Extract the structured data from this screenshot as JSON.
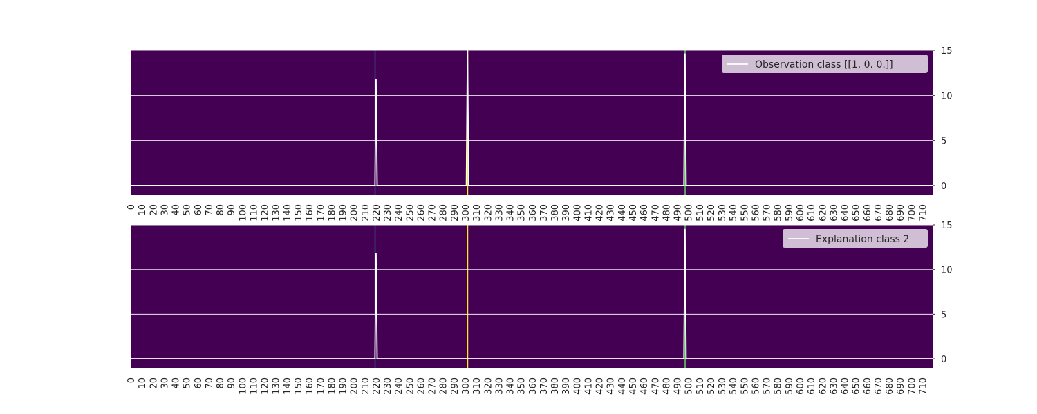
{
  "chart_data": [
    {
      "type": "heatmap",
      "background_color": "#440154",
      "xlim": [
        0,
        719
      ],
      "ylim": [
        -1,
        15
      ],
      "x_ticks": [
        0,
        10,
        20,
        30,
        40,
        50,
        60,
        70,
        80,
        90,
        100,
        110,
        120,
        130,
        140,
        150,
        160,
        170,
        180,
        190,
        200,
        210,
        220,
        230,
        240,
        250,
        260,
        270,
        280,
        290,
        300,
        310,
        320,
        330,
        340,
        350,
        360,
        370,
        380,
        390,
        400,
        410,
        420,
        430,
        440,
        450,
        460,
        470,
        480,
        490,
        500,
        510,
        520,
        530,
        540,
        550,
        560,
        570,
        580,
        590,
        600,
        610,
        620,
        630,
        640,
        650,
        660,
        670,
        680,
        690,
        700,
        710
      ],
      "y_ticks": [
        0,
        5,
        10,
        15
      ],
      "y_axis_side": "right",
      "grid": true,
      "highlight_columns": [
        {
          "x": 219,
          "color": "#3b528b"
        },
        {
          "x": 302,
          "color": "#fde725"
        },
        {
          "x": 497,
          "color": "#5ec962"
        }
      ],
      "series": [
        {
          "name": "Observation class [[1. 0. 0.]]",
          "color": "#ffffff",
          "baseline": 0,
          "peaks": [
            {
              "x": 220,
              "y": 11.8
            },
            {
              "x": 302,
              "y": 15.2
            },
            {
              "x": 497,
              "y": 14.6
            }
          ]
        }
      ],
      "legend_position": "top-right"
    },
    {
      "type": "heatmap",
      "background_color": "#440154",
      "xlim": [
        0,
        719
      ],
      "ylim": [
        -1,
        15
      ],
      "x_ticks": [
        0,
        10,
        20,
        30,
        40,
        50,
        60,
        70,
        80,
        90,
        100,
        110,
        120,
        130,
        140,
        150,
        160,
        170,
        180,
        190,
        200,
        210,
        220,
        230,
        240,
        250,
        260,
        270,
        280,
        290,
        300,
        310,
        320,
        330,
        340,
        350,
        360,
        370,
        380,
        390,
        400,
        410,
        420,
        430,
        440,
        450,
        460,
        470,
        480,
        490,
        500,
        510,
        520,
        530,
        540,
        550,
        560,
        570,
        580,
        590,
        600,
        610,
        620,
        630,
        640,
        650,
        660,
        670,
        680,
        690,
        700,
        710
      ],
      "y_ticks": [
        0,
        5,
        10,
        15
      ],
      "y_axis_side": "right",
      "grid": true,
      "highlight_columns": [
        {
          "x": 219,
          "color": "#3b528b"
        },
        {
          "x": 302,
          "color": "#fde725"
        },
        {
          "x": 497,
          "color": "#5ec962"
        }
      ],
      "series": [
        {
          "name": "Explanation class 2",
          "color": "#ffffff",
          "baseline": 0,
          "peaks": [
            {
              "x": 220,
              "y": 11.8
            },
            {
              "x": 497,
              "y": 14.5
            }
          ]
        }
      ],
      "legend_position": "top-right"
    }
  ]
}
